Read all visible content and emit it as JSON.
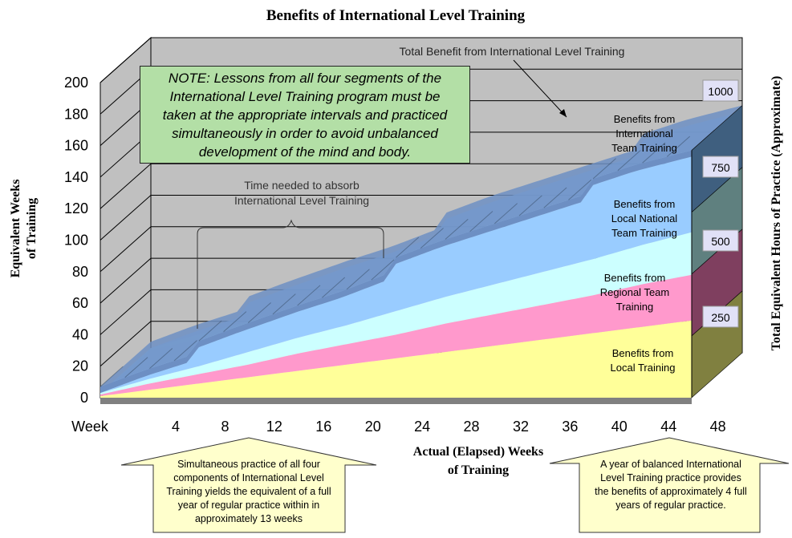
{
  "chart_data": {
    "type": "area",
    "title": "Benefits of International Level Training",
    "ylabel_lines": [
      "Equivalent Weeks",
      "of Training"
    ],
    "xlabel_lines": [
      "Actual (Elapsed) Weeks",
      "of Training"
    ],
    "y2label": "Total Equivalent Hours of Practice (Approximate)",
    "x_first_label": "Week",
    "xticks": [
      "4",
      "8",
      "12",
      "16",
      "20",
      "24",
      "28",
      "32",
      "36",
      "40",
      "44",
      "48"
    ],
    "yticks": [
      0,
      20,
      40,
      60,
      80,
      100,
      120,
      140,
      160,
      180,
      200
    ],
    "ylim": [
      0,
      200
    ],
    "xlim": [
      1,
      49
    ],
    "stacked": true,
    "series": [
      {
        "label_lines": [
          "Benefits from",
          "Local Training"
        ],
        "color": "#ffff99",
        "x": [
          1,
          49
        ],
        "values": [
          1,
          49
        ]
      },
      {
        "label_lines": [
          "Benefits from",
          "Regional Team",
          "Training"
        ],
        "color": "#ff99cc",
        "x": [
          1,
          5,
          9,
          13,
          17,
          21,
          25,
          29,
          33,
          37,
          41,
          45,
          49
        ],
        "values": [
          1,
          4,
          6,
          8,
          11,
          13,
          15,
          18,
          20,
          22,
          24,
          27,
          29
        ]
      },
      {
        "label_lines": [
          "Benefits from",
          "Local National",
          "Team Training"
        ],
        "color": "#ccffff",
        "x": [
          1,
          5,
          9,
          13,
          17,
          21,
          25,
          29,
          33,
          37,
          41,
          45,
          49
        ],
        "values": [
          1,
          3,
          5,
          8,
          10,
          12,
          15,
          17,
          19,
          21,
          23,
          25,
          27
        ]
      },
      {
        "label_lines": [
          "Benefits from",
          "International",
          "Team Training"
        ],
        "color": "#99ccff",
        "x": [
          1,
          4,
          8,
          9,
          12,
          16,
          20,
          24,
          25,
          28,
          32,
          36,
          40,
          41,
          44,
          48,
          49
        ],
        "values": [
          0,
          2,
          4,
          12,
          14,
          16,
          18,
          21,
          30,
          32,
          34,
          36,
          38,
          47,
          48,
          48,
          48
        ]
      },
      {
        "label_lines": [],
        "color": "#6d8fc3",
        "x": [
          1,
          49
        ],
        "values": [
          4,
          4
        ]
      }
    ],
    "right_scale": [
      {
        "label": "250",
        "color": "#808040"
      },
      {
        "label": "500",
        "color": "#7f3f5f"
      },
      {
        "label": "750",
        "color": "#5f807f"
      },
      {
        "label": "1000",
        "color": "#3f5f7f"
      }
    ],
    "annotations": {
      "total_benefit": "Total Benefit from International Level Training",
      "absorb_lines": [
        "Time needed to absorb",
        "International Level Training"
      ],
      "note_lines": [
        "NOTE: Lessons from all four segments of the",
        "International Level Training program must be",
        "taken at the appropriate intervals and practiced",
        "simultaneously in order to avoid unbalanced",
        "development of the mind and body."
      ],
      "callout_left_lines": [
        "Simultaneous practice of all four",
        "components of International Level",
        "Training yields the equivalent of a full",
        "year of regular practice within in",
        "approximately 13 weeks"
      ],
      "callout_right_lines": [
        "A year of balanced International",
        "Level Training practice provides",
        "the benefits of approximately 4 full",
        "years of regular practice."
      ]
    },
    "colors": {
      "back_wall": "#c0c0c0",
      "side_wall": "#c0c0c0",
      "floor": "#808080",
      "grid": "#000000"
    }
  }
}
